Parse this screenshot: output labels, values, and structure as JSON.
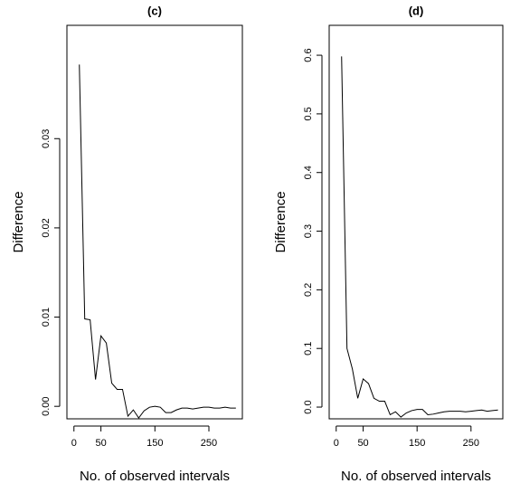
{
  "chart_data": [
    {
      "type": "line",
      "title": "(c)",
      "xlabel": "No. of observed intervals",
      "ylabel": "Difference",
      "x": [
        10,
        20,
        30,
        40,
        50,
        60,
        70,
        80,
        90,
        100,
        110,
        120,
        130,
        140,
        150,
        160,
        170,
        180,
        190,
        200,
        210,
        220,
        230,
        240,
        250,
        260,
        270,
        280,
        290,
        300
      ],
      "series": [
        {
          "color": "#000000",
          "values": [
            0.0383,
            0.0098,
            0.0097,
            0.003,
            0.0079,
            0.0071,
            0.0026,
            0.0019,
            0.0019,
            -0.0011,
            -0.0004,
            -0.0013,
            -0.0005,
            -0.0001,
            0.0,
            -0.0001,
            -0.0007,
            -0.0007,
            -0.0004,
            -0.0002,
            -0.0002,
            -0.0003,
            -0.0002,
            -0.0001,
            -0.0001,
            -0.0002,
            -0.0002,
            -0.0001,
            -0.0002,
            -0.0002
          ]
        }
      ],
      "xlim": [
        -13,
        312
      ],
      "xticks": [
        0,
        50,
        150,
        250
      ],
      "ylim": [
        -0.0014,
        0.0427
      ],
      "yticks": [
        {
          "value": 0,
          "label": "0.00"
        },
        0.01,
        0.02,
        0.03
      ]
    },
    {
      "type": "line",
      "title": "(d)",
      "xlabel": "No. of observed intervals",
      "ylabel": "Difference",
      "x": [
        10,
        20,
        30,
        40,
        50,
        60,
        70,
        80,
        90,
        100,
        110,
        120,
        130,
        140,
        150,
        160,
        170,
        180,
        190,
        200,
        210,
        220,
        230,
        240,
        250,
        260,
        270,
        280,
        290,
        300
      ],
      "series": [
        {
          "color": "#000000",
          "values": [
            0.598,
            0.1,
            0.065,
            0.015,
            0.048,
            0.04,
            0.015,
            0.01,
            0.01,
            -0.013,
            -0.008,
            -0.017,
            -0.01,
            -0.006,
            -0.004,
            -0.004,
            -0.013,
            -0.012,
            -0.01,
            -0.008,
            -0.007,
            -0.007,
            -0.007,
            -0.008,
            -0.007,
            -0.006,
            -0.005,
            -0.007,
            -0.006,
            -0.005
          ]
        }
      ],
      "xlim": [
        -13,
        309
      ],
      "xticks": [
        0,
        50,
        150,
        250
      ],
      "ylim": [
        -0.02,
        0.651
      ],
      "yticks": [
        {
          "value": 0,
          "label": "0.0"
        },
        0.1,
        0.2,
        0.3,
        0.4,
        0.5,
        0.6
      ]
    }
  ]
}
